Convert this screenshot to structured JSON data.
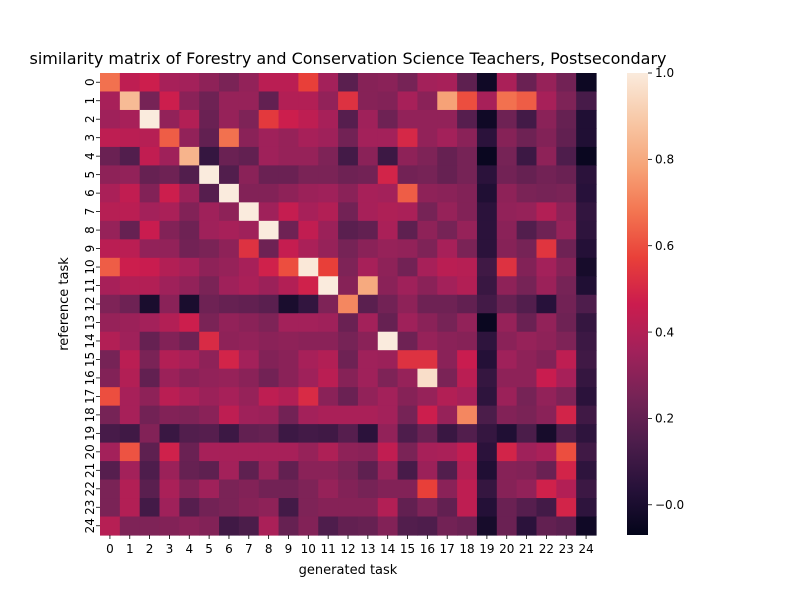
{
  "chart_data": {
    "type": "heatmap",
    "title": "similarity matrix of Forestry and Conservation Science Teachers, Postsecondary",
    "xlabel": "generated task",
    "ylabel": "reference task",
    "x_categories": [
      "0",
      "1",
      "2",
      "3",
      "4",
      "5",
      "6",
      "7",
      "8",
      "9",
      "10",
      "11",
      "12",
      "13",
      "14",
      "15",
      "16",
      "17",
      "18",
      "19",
      "20",
      "21",
      "22",
      "23",
      "24"
    ],
    "y_categories": [
      "0",
      "1",
      "2",
      "3",
      "4",
      "5",
      "6",
      "7",
      "8",
      "9",
      "10",
      "11",
      "12",
      "13",
      "14",
      "15",
      "16",
      "17",
      "18",
      "19",
      "20",
      "21",
      "22",
      "23",
      "24"
    ],
    "colorbar": {
      "min": -0.07,
      "max": 1.0,
      "ticks": [
        -0.0,
        0.2,
        0.4,
        0.6,
        0.8,
        1.0
      ],
      "tick_labels": [
        "−0.0",
        "0.2",
        "0.4",
        "0.6",
        "0.8",
        "1.0"
      ],
      "colormap": "rocket"
    },
    "values": [
      [
        0.67,
        0.43,
        0.47,
        0.37,
        0.36,
        0.31,
        0.26,
        0.32,
        0.42,
        0.42,
        0.57,
        0.36,
        0.18,
        0.29,
        0.3,
        0.25,
        0.36,
        0.37,
        0.19,
        -0.03,
        0.38,
        0.22,
        0.33,
        0.24,
        -0.04
      ],
      [
        0.37,
        0.85,
        0.25,
        0.47,
        0.3,
        0.23,
        0.33,
        0.33,
        0.2,
        0.4,
        0.4,
        0.32,
        0.53,
        0.29,
        0.28,
        0.37,
        0.3,
        0.78,
        0.6,
        0.37,
        0.67,
        0.63,
        0.37,
        0.27,
        0.13
      ],
      [
        0.35,
        0.37,
        1.0,
        0.32,
        0.4,
        0.22,
        0.33,
        0.27,
        0.55,
        0.47,
        0.43,
        0.37,
        0.17,
        0.35,
        0.23,
        0.32,
        0.32,
        0.32,
        0.17,
        -0.03,
        0.23,
        0.12,
        0.3,
        0.21,
        0.02
      ],
      [
        0.43,
        0.42,
        0.41,
        0.63,
        0.32,
        0.2,
        0.67,
        0.3,
        0.35,
        0.33,
        0.37,
        0.35,
        0.24,
        0.36,
        0.36,
        0.5,
        0.32,
        0.36,
        0.3,
        0.05,
        0.29,
        0.23,
        0.28,
        0.2,
        0.02
      ],
      [
        0.22,
        0.16,
        0.44,
        0.35,
        0.83,
        0.08,
        0.22,
        0.2,
        0.35,
        0.33,
        0.33,
        0.27,
        0.12,
        0.3,
        0.1,
        0.31,
        0.27,
        0.21,
        0.25,
        -0.05,
        0.25,
        0.1,
        0.31,
        0.15,
        -0.05
      ],
      [
        0.31,
        0.32,
        0.21,
        0.23,
        0.16,
        1.0,
        0.16,
        0.3,
        0.22,
        0.22,
        0.26,
        0.26,
        0.23,
        0.24,
        0.49,
        0.24,
        0.25,
        0.21,
        0.25,
        0.05,
        0.24,
        0.21,
        0.24,
        0.22,
        0.05
      ],
      [
        0.38,
        0.44,
        0.28,
        0.47,
        0.34,
        0.17,
        1.0,
        0.28,
        0.28,
        0.31,
        0.34,
        0.35,
        0.3,
        0.37,
        0.36,
        0.63,
        0.31,
        0.3,
        0.28,
        0.02,
        0.31,
        0.26,
        0.25,
        0.26,
        0.04
      ],
      [
        0.41,
        0.42,
        0.36,
        0.38,
        0.28,
        0.35,
        0.31,
        1.0,
        0.35,
        0.45,
        0.37,
        0.4,
        0.24,
        0.37,
        0.39,
        0.38,
        0.25,
        0.33,
        0.28,
        0.05,
        0.32,
        0.33,
        0.4,
        0.31,
        0.07
      ],
      [
        0.33,
        0.21,
        0.46,
        0.28,
        0.23,
        0.35,
        0.37,
        0.35,
        1.0,
        0.23,
        0.44,
        0.34,
        0.18,
        0.2,
        0.38,
        0.19,
        0.31,
        0.25,
        0.33,
        0.05,
        0.3,
        0.16,
        0.23,
        0.33,
        0.06
      ],
      [
        0.42,
        0.42,
        0.32,
        0.32,
        0.24,
        0.26,
        0.31,
        0.53,
        0.23,
        0.45,
        0.38,
        0.33,
        0.25,
        0.3,
        0.33,
        0.32,
        0.27,
        0.37,
        0.26,
        0.05,
        0.29,
        0.25,
        0.54,
        0.23,
        0.03
      ],
      [
        0.63,
        0.47,
        0.46,
        0.4,
        0.37,
        0.31,
        0.33,
        0.37,
        0.48,
        0.6,
        0.99,
        0.57,
        0.27,
        0.37,
        0.31,
        0.24,
        0.37,
        0.42,
        0.41,
        0.11,
        0.53,
        0.28,
        0.36,
        0.29,
        -0.01
      ],
      [
        0.37,
        0.4,
        0.4,
        0.35,
        0.32,
        0.26,
        0.35,
        0.38,
        0.34,
        0.4,
        0.48,
        1.0,
        0.29,
        0.8,
        0.3,
        0.35,
        0.3,
        0.36,
        0.4,
        0.09,
        0.31,
        0.25,
        0.34,
        0.25,
        0.02
      ],
      [
        0.27,
        0.23,
        0.0,
        0.3,
        0.0,
        0.23,
        0.21,
        0.2,
        0.18,
        0.0,
        0.07,
        0.27,
        0.72,
        0.18,
        0.24,
        0.31,
        0.23,
        0.23,
        0.2,
        0.12,
        0.21,
        0.16,
        0.04,
        0.24,
        0.15
      ],
      [
        0.33,
        0.34,
        0.36,
        0.4,
        0.47,
        0.26,
        0.32,
        0.3,
        0.27,
        0.36,
        0.36,
        0.35,
        0.22,
        0.36,
        0.21,
        0.35,
        0.3,
        0.25,
        0.32,
        -0.05,
        0.33,
        0.22,
        0.32,
        0.23,
        0.08
      ],
      [
        0.4,
        0.35,
        0.21,
        0.28,
        0.23,
        0.51,
        0.31,
        0.32,
        0.3,
        0.31,
        0.3,
        0.3,
        0.25,
        0.3,
        1.0,
        0.23,
        0.33,
        0.3,
        0.29,
        0.06,
        0.3,
        0.33,
        0.31,
        0.27,
        0.1
      ],
      [
        0.25,
        0.42,
        0.26,
        0.4,
        0.37,
        0.31,
        0.49,
        0.36,
        0.28,
        0.3,
        0.37,
        0.4,
        0.23,
        0.35,
        0.34,
        0.53,
        0.53,
        0.3,
        0.46,
        0.03,
        0.35,
        0.31,
        0.28,
        0.43,
        0.11
      ],
      [
        0.28,
        0.4,
        0.2,
        0.34,
        0.3,
        0.32,
        0.33,
        0.3,
        0.24,
        0.3,
        0.35,
        0.42,
        0.29,
        0.35,
        0.27,
        0.33,
        0.96,
        0.26,
        0.42,
        0.08,
        0.31,
        0.31,
        0.46,
        0.37,
        0.08
      ],
      [
        0.6,
        0.37,
        0.31,
        0.42,
        0.38,
        0.34,
        0.37,
        0.33,
        0.43,
        0.4,
        0.51,
        0.3,
        0.22,
        0.32,
        0.36,
        0.29,
        0.33,
        0.4,
        0.37,
        0.06,
        0.34,
        0.25,
        0.32,
        0.27,
        0.05
      ],
      [
        0.25,
        0.37,
        0.24,
        0.28,
        0.27,
        0.3,
        0.43,
        0.35,
        0.34,
        0.24,
        0.36,
        0.38,
        0.38,
        0.38,
        0.36,
        0.25,
        0.47,
        0.33,
        0.72,
        0.14,
        0.28,
        0.26,
        0.3,
        0.49,
        0.11
      ],
      [
        0.13,
        0.11,
        0.28,
        0.09,
        0.16,
        0.17,
        0.1,
        0.2,
        0.21,
        0.1,
        0.12,
        0.11,
        0.17,
        0.05,
        0.32,
        0.15,
        0.22,
        0.09,
        0.16,
        0.08,
        0.02,
        0.14,
        -0.01,
        0.14,
        0.06
      ],
      [
        0.36,
        0.61,
        0.19,
        0.48,
        0.22,
        0.37,
        0.37,
        0.37,
        0.37,
        0.37,
        0.33,
        0.39,
        0.31,
        0.3,
        0.44,
        0.26,
        0.37,
        0.38,
        0.44,
        0.05,
        0.49,
        0.35,
        0.38,
        0.6,
        0.11
      ],
      [
        0.17,
        0.36,
        0.15,
        0.34,
        0.21,
        0.19,
        0.36,
        0.19,
        0.33,
        0.2,
        0.3,
        0.3,
        0.26,
        0.19,
        0.33,
        0.13,
        0.34,
        0.16,
        0.4,
        0.02,
        0.29,
        0.28,
        0.22,
        0.49,
        0.06
      ],
      [
        0.26,
        0.4,
        0.18,
        0.38,
        0.28,
        0.35,
        0.26,
        0.28,
        0.24,
        0.24,
        0.27,
        0.33,
        0.28,
        0.25,
        0.28,
        0.28,
        0.57,
        0.3,
        0.43,
        0.08,
        0.29,
        0.32,
        0.48,
        0.4,
        0.1
      ],
      [
        0.26,
        0.4,
        0.12,
        0.35,
        0.17,
        0.24,
        0.26,
        0.29,
        0.31,
        0.12,
        0.27,
        0.29,
        0.29,
        0.29,
        0.4,
        0.2,
        0.27,
        0.2,
        0.43,
        0.03,
        0.22,
        0.17,
        0.12,
        0.49,
        0.06
      ],
      [
        0.41,
        0.27,
        0.27,
        0.28,
        0.3,
        0.28,
        0.11,
        0.14,
        0.38,
        0.21,
        0.28,
        0.15,
        0.2,
        0.21,
        0.28,
        0.16,
        0.15,
        0.24,
        0.22,
        -0.01,
        0.22,
        0.05,
        0.2,
        0.18,
        -0.03
      ]
    ]
  }
}
